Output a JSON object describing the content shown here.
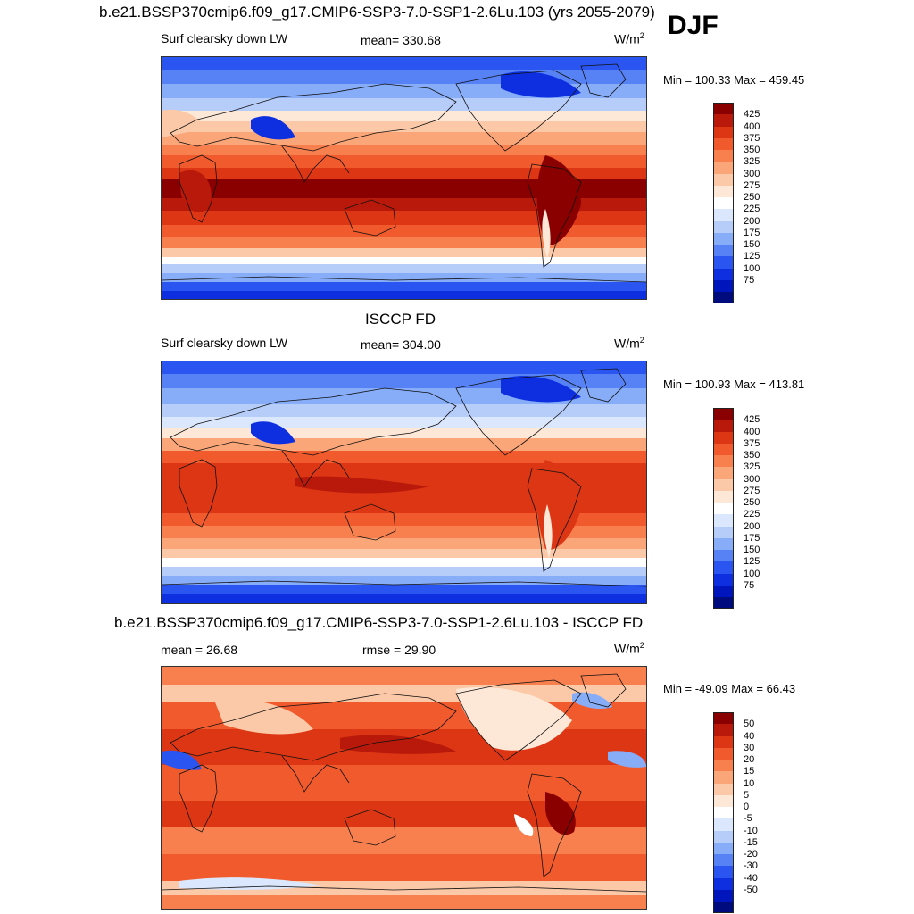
{
  "season": "DJF",
  "colors": {
    "abs_scale": [
      "#000c7d",
      "#0016bd",
      "#0d2fe0",
      "#2b55f0",
      "#5682f5",
      "#87adf8",
      "#b6cdfa",
      "#dbe7fc",
      "#ffffff",
      "#fde8d8",
      "#fcc9a8",
      "#fba678",
      "#f8804f",
      "#f05a2c",
      "#dc3614",
      "#b9190a",
      "#8a0000"
    ],
    "diff_scale": [
      "#000c7d",
      "#0016bd",
      "#0d2fe0",
      "#2b55f0",
      "#5682f5",
      "#87adf8",
      "#b6cdfa",
      "#dbe7fc",
      "#ffffff",
      "#fde8d8",
      "#fcc9a8",
      "#fba678",
      "#f8804f",
      "#f05a2c",
      "#dc3614",
      "#b9190a",
      "#8a0000"
    ]
  },
  "chart_data": [
    {
      "type": "heatmap",
      "title": "b.e21.BSSP370cmip6.f09_g17.CMIP6-SSP3-7.0-SSP1-2.6Lu.103 (yrs 2055-2079)",
      "left_label": "Surf clearsky down LW",
      "center_label": "mean= 330.68",
      "units_base": "W/m",
      "units_exp": "2",
      "minmax": "Min = 100.33 Max = 459.45",
      "mean": 330.68,
      "min": 100.33,
      "max": 459.45,
      "colorbar_levels": [
        "425",
        "400",
        "375",
        "350",
        "325",
        "300",
        "275",
        "250",
        "225",
        "200",
        "175",
        "150",
        "125",
        "100",
        "75"
      ]
    },
    {
      "type": "heatmap",
      "title": "ISCCP FD",
      "left_label": "Surf clearsky down LW",
      "center_label": "mean= 304.00",
      "units_base": "W/m",
      "units_exp": "2",
      "minmax": "Min = 100.93 Max = 413.81",
      "mean": 304.0,
      "min": 100.93,
      "max": 413.81,
      "colorbar_levels": [
        "425",
        "400",
        "375",
        "350",
        "325",
        "300",
        "275",
        "250",
        "225",
        "200",
        "175",
        "150",
        "125",
        "100",
        "75"
      ]
    },
    {
      "type": "heatmap",
      "title": "b.e21.BSSP370cmip6.f09_g17.CMIP6-SSP3-7.0-SSP1-2.6Lu.103 - ISCCP FD",
      "left_label": "mean =  26.68",
      "center_label": "rmse =  29.90",
      "units_base": "W/m",
      "units_exp": "2",
      "minmax": "Min = -49.09 Max =  66.43",
      "mean": 26.68,
      "rmse": 29.9,
      "min": -49.09,
      "max": 66.43,
      "colorbar_levels": [
        "50",
        "40",
        "30",
        "20",
        "15",
        "10",
        "5",
        "0",
        "-5",
        "-10",
        "-15",
        "-20",
        "-30",
        "-40",
        "-50"
      ]
    }
  ]
}
